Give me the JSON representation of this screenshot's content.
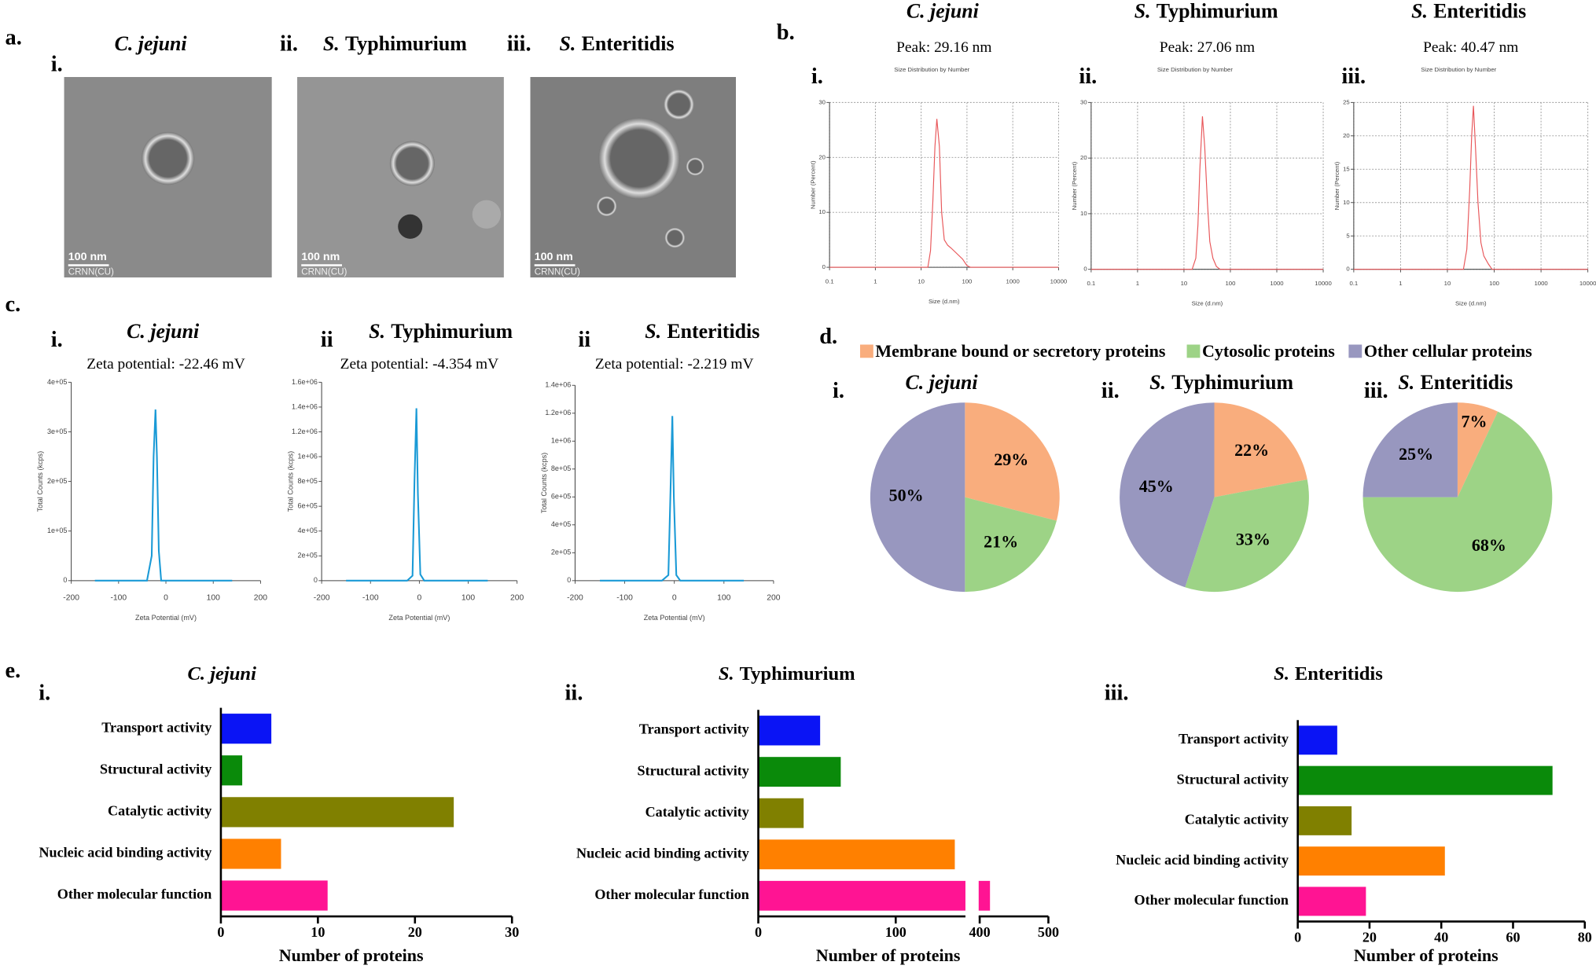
{
  "panel_labels": [
    "a.",
    "b.",
    "c.",
    "d.",
    "e."
  ],
  "images": [
    {
      "numeral": "i.",
      "title_parts": [
        "C. jejuni"
      ],
      "scale_bar": "100 nm",
      "credit": "CRNN(CU)"
    },
    {
      "numeral": "ii.",
      "title_parts": [
        "S.",
        "Typhimurium"
      ],
      "scale_bar": "100 nm",
      "credit": "CRNN(CU)"
    },
    {
      "numeral": "iii.",
      "title_parts": [
        "S.",
        "Enteritidis"
      ],
      "scale_bar": "100 nm",
      "credit": "CRNN(CU)"
    }
  ],
  "pie_legend": {
    "labels": [
      "Membrane bound or secretory proteins",
      "Cytosolic proteins",
      "Other cellular proteins"
    ],
    "colors": [
      "#f9ad7d",
      "#9dd386",
      "#9897bf"
    ]
  },
  "chart_data": [
    {
      "type": "line",
      "numeral": "i.",
      "title_parts": [
        "C. jejuni"
      ],
      "subtitle": "Peak: 29.16 nm",
      "inner_title": "Size Distribution by Number",
      "xlabel": "Size (d.nm)",
      "ylabel": "Number (Percent)",
      "xlog": true,
      "grid": true,
      "xlim": [
        0.1,
        10000
      ],
      "xticks": [
        0.1,
        1,
        10,
        100,
        1000,
        10000
      ],
      "ylim": [
        0,
        30
      ],
      "yticks": [
        0,
        10,
        20,
        30
      ],
      "x": [
        0.1,
        14,
        16,
        18,
        20,
        22,
        25,
        28,
        32,
        38,
        45,
        60,
        80,
        100,
        120,
        10000
      ],
      "series": [
        {
          "color": "#e8575a",
          "values": [
            0,
            0,
            3,
            12,
            22,
            27,
            22,
            10,
            5,
            4,
            3.5,
            2.5,
            1.5,
            0.3,
            0,
            0
          ]
        }
      ]
    },
    {
      "type": "line",
      "numeral": "ii.",
      "title_parts": [
        "S.",
        "Typhimurium"
      ],
      "subtitle": "Peak: 27.06 nm",
      "inner_title": "Size Distribution by Number",
      "xlabel": "Size (d.nm)",
      "ylabel": "Number (Percent)",
      "xlog": true,
      "grid": true,
      "xlim": [
        0.1,
        10000
      ],
      "xticks": [
        0.1,
        1,
        10,
        100,
        1000,
        10000
      ],
      "ylim": [
        0,
        30
      ],
      "yticks": [
        0,
        10,
        20,
        30
      ],
      "x": [
        0.1,
        15,
        18,
        20,
        22,
        25,
        28,
        32,
        36,
        42,
        50,
        60,
        10000
      ],
      "series": [
        {
          "color": "#e8575a",
          "values": [
            0,
            0,
            2,
            8,
            18,
            27.5,
            22,
            12,
            5,
            2,
            0.5,
            0,
            0
          ]
        }
      ]
    },
    {
      "type": "line",
      "numeral": "iii.",
      "title_parts": [
        "S.",
        "Enteritidis"
      ],
      "subtitle": "Peak: 40.47 nm",
      "inner_title": "Size Distribution by Number",
      "xlabel": "Size (d.nm)",
      "ylabel": "Number (Percent)",
      "xlog": true,
      "grid": true,
      "xlim": [
        0.1,
        10000
      ],
      "xticks": [
        0.1,
        1,
        10,
        100,
        1000,
        10000
      ],
      "ylim": [
        0,
        25
      ],
      "yticks": [
        0,
        5,
        10,
        15,
        20,
        25
      ],
      "x": [
        0.1,
        22,
        26,
        30,
        33,
        36,
        40,
        45,
        52,
        60,
        75,
        90,
        10000
      ],
      "series": [
        {
          "color": "#e8575a",
          "values": [
            0,
            0,
            3,
            12,
            20,
            24.5,
            18,
            10,
            4,
            2,
            0.8,
            0,
            0
          ]
        }
      ]
    },
    {
      "type": "line",
      "numeral": "i.",
      "title_parts": [
        "C. jejuni"
      ],
      "subtitle": "Zeta potential: -22.46 mV",
      "xlabel": "Zeta Potential (mV)",
      "ylabel": "Total Counts (kcps)",
      "xlog": false,
      "grid": false,
      "xlim": [
        -200,
        200
      ],
      "xticks": [
        -200,
        -100,
        0,
        100,
        200
      ],
      "ylim": [
        0,
        400000
      ],
      "yticks": [
        0,
        {
          "value": 100000,
          "label": "1e+05"
        },
        {
          "value": 200000,
          "label": "2e+05"
        },
        {
          "value": 300000,
          "label": "3e+05"
        },
        {
          "value": 400000,
          "label": "4e+05"
        }
      ],
      "x": [
        -150,
        -40,
        -30,
        -26,
        -22,
        -19,
        -15,
        -10,
        140
      ],
      "series": [
        {
          "color": "#1a9ad6",
          "values": [
            0,
            0,
            50000,
            250000,
            345000,
            250000,
            60000,
            0,
            0
          ]
        }
      ]
    },
    {
      "type": "line",
      "numeral": "ii",
      "title_parts": [
        "S.",
        "Typhimurium"
      ],
      "subtitle": "Zeta potential: -4.354 mV",
      "xlabel": "Zeta Potential (mV)",
      "ylabel": "Total Counts (kcps)",
      "xlog": false,
      "grid": false,
      "xlim": [
        -200,
        200
      ],
      "xticks": [
        -200,
        -100,
        0,
        100,
        200
      ],
      "ylim": [
        0,
        1600000
      ],
      "yticks": [
        0,
        {
          "value": 200000,
          "label": "2e+05"
        },
        {
          "value": 400000,
          "label": "4e+05"
        },
        {
          "value": 600000,
          "label": "6e+05"
        },
        {
          "value": 800000,
          "label": "8e+05"
        },
        {
          "value": 1000000,
          "label": "1e+06"
        },
        {
          "value": 1200000,
          "label": "1.2e+06"
        },
        {
          "value": 1400000,
          "label": "1.4e+06"
        },
        {
          "value": 1600000,
          "label": "1.6e+06"
        }
      ],
      "x": [
        -150,
        -25,
        -14,
        -10,
        -6,
        -3,
        2,
        10,
        140
      ],
      "series": [
        {
          "color": "#1a9ad6",
          "values": [
            0,
            0,
            40000,
            800000,
            1390000,
            700000,
            50000,
            0,
            0
          ]
        }
      ]
    },
    {
      "type": "line",
      "numeral": "ii",
      "title_parts": [
        "S.",
        "Enteritidis"
      ],
      "subtitle": "Zeta potential: -2.219 mV",
      "xlabel": "Zeta Potential (mV)",
      "ylabel": "Total Counts (kcps)",
      "xlog": false,
      "grid": false,
      "xlim": [
        -200,
        200
      ],
      "xticks": [
        -200,
        -100,
        0,
        100,
        200
      ],
      "ylim": [
        0,
        1400000
      ],
      "yticks": [
        0,
        {
          "value": 200000,
          "label": "2e+05"
        },
        {
          "value": 400000,
          "label": "4e+05"
        },
        {
          "value": 600000,
          "label": "6e+05"
        },
        {
          "value": 800000,
          "label": "8e+05"
        },
        {
          "value": 1000000,
          "label": "1e+06"
        },
        {
          "value": 1200000,
          "label": "1.2e+06"
        },
        {
          "value": 1400000,
          "label": "1.4e+06"
        }
      ],
      "x": [
        -150,
        -25,
        -12,
        -8,
        -4,
        -1,
        4,
        12,
        140
      ],
      "series": [
        {
          "color": "#1a9ad6",
          "values": [
            0,
            0,
            40000,
            600000,
            1180000,
            600000,
            40000,
            0,
            0
          ]
        }
      ]
    },
    {
      "type": "pie",
      "numeral": "i.",
      "title_parts": [
        "C. jejuni"
      ],
      "values": [
        29,
        21,
        50
      ],
      "value_labels": [
        "29%",
        "21%",
        "50%"
      ]
    },
    {
      "type": "pie",
      "numeral": "ii.",
      "title_parts": [
        "S.",
        "Typhimurium"
      ],
      "values": [
        22,
        33,
        45
      ],
      "value_labels": [
        "22%",
        "33%",
        "45%"
      ]
    },
    {
      "type": "pie",
      "numeral": "iii.",
      "title_parts": [
        "S.",
        "Enteritidis"
      ],
      "values": [
        7,
        68,
        25
      ],
      "value_labels": [
        "7%",
        "68%",
        "25%"
      ]
    },
    {
      "type": "hbar",
      "numeral": "i.",
      "title_parts": [
        "C. jejuni"
      ],
      "xlabel": "Number of proteins",
      "categories": [
        "Transport activity",
        "Structural activity",
        "Catalytic activity",
        "Nucleic acid binding activity",
        "Other molecular function"
      ],
      "colors": [
        "#0a14f5",
        "#0a8a0a",
        "#808000",
        "#ff8000",
        "#ff1493"
      ],
      "values": [
        5.2,
        2.2,
        24,
        6.2,
        11
      ],
      "xlim": [
        0,
        30
      ],
      "xticks": [
        0,
        10,
        20,
        30
      ]
    },
    {
      "type": "hbar",
      "numeral": "ii.",
      "title_parts": [
        "S.",
        "Typhimurium"
      ],
      "xlabel": "Number of proteins",
      "categories": [
        "Transport activity",
        "Structural activity",
        "Catalytic activity",
        "Nucleic acid binding activity",
        "Other molecular function"
      ],
      "colors": [
        "#0a14f5",
        "#0a8a0a",
        "#808000",
        "#ff8000",
        "#ff1493"
      ],
      "values": [
        45,
        60,
        33,
        143,
        415
      ],
      "xlim": [
        0,
        500
      ],
      "xbreak": [
        150,
        400
      ],
      "xticks": [
        0,
        100,
        400,
        500
      ]
    },
    {
      "type": "hbar",
      "numeral": "iii.",
      "title_parts": [
        "S.",
        "Enteritidis"
      ],
      "xlabel": "Number of proteins",
      "categories": [
        "Transport activity",
        "Structural activity",
        "Catalytic activity",
        "Nucleic acid binding activity",
        "Other molecular function"
      ],
      "colors": [
        "#0a14f5",
        "#0a8a0a",
        "#808000",
        "#ff8000",
        "#ff1493"
      ],
      "values": [
        11,
        71,
        15,
        41,
        19
      ],
      "xlim": [
        0,
        80
      ],
      "xticks": [
        0,
        20,
        40,
        60,
        80
      ]
    }
  ]
}
